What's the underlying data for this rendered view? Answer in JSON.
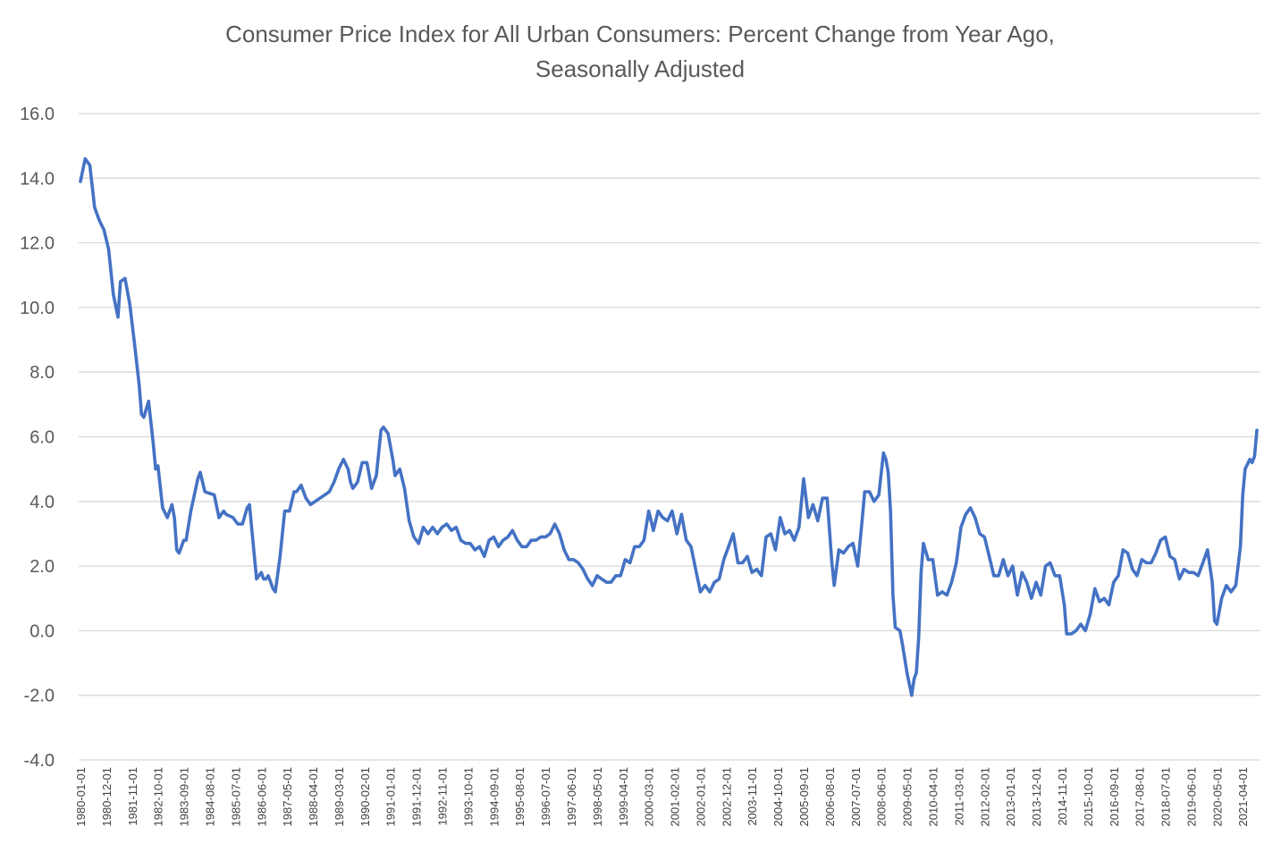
{
  "chart_data": {
    "type": "line",
    "title": "Consumer Price Index for All Urban Consumers:  Percent Change from Year Ago,",
    "subtitle": "Seasonally Adjusted",
    "xlabel": "",
    "ylabel": "",
    "ylim": [
      -4.0,
      16.0
    ],
    "yticks": [
      -4.0,
      -2.0,
      0.0,
      2.0,
      4.0,
      6.0,
      8.0,
      10.0,
      12.0,
      14.0,
      16.0
    ],
    "ytick_labels": [
      "-4.0",
      "-2.0",
      "0.0",
      "2.0",
      "4.0",
      "6.0",
      "8.0",
      "10.0",
      "12.0",
      "14.0",
      "16.0"
    ],
    "xtick_labels": [
      "1980-01-01",
      "1980-12-01",
      "1981-11-01",
      "1982-10-01",
      "1983-09-01",
      "1984-08-01",
      "1985-07-01",
      "1986-06-01",
      "1987-05-01",
      "1988-04-01",
      "1989-03-01",
      "1990-02-01",
      "1991-01-01",
      "1991-12-01",
      "1992-11-01",
      "1993-10-01",
      "1994-09-01",
      "1995-08-01",
      "1996-07-01",
      "1997-06-01",
      "1998-05-01",
      "1999-04-01",
      "2000-03-01",
      "2001-02-01",
      "2002-01-01",
      "2002-12-01",
      "2003-11-01",
      "2004-10-01",
      "2005-09-01",
      "2006-08-01",
      "2007-07-01",
      "2008-06-01",
      "2009-05-01",
      "2010-04-01",
      "2011-03-01",
      "2012-02-01",
      "2013-01-01",
      "2013-12-01",
      "2014-11-01",
      "2015-10-01",
      "2016-09-01",
      "2017-08-01",
      "2018-07-01",
      "2019-06-01",
      "2020-05-01",
      "2021-04-01"
    ],
    "grid": true,
    "legend": "none",
    "line_color": "#4472C4",
    "series": [
      {
        "name": "CPI % change from year ago",
        "start": "1980-01",
        "end": "2021-10",
        "frequency": "monthly",
        "keypoints": [
          [
            "1980-01",
            13.9
          ],
          [
            "1980-03",
            14.6
          ],
          [
            "1980-05",
            14.4
          ],
          [
            "1980-07",
            13.1
          ],
          [
            "1980-09",
            12.7
          ],
          [
            "1980-11",
            12.4
          ],
          [
            "1981-01",
            11.8
          ],
          [
            "1981-03",
            10.4
          ],
          [
            "1981-05",
            9.7
          ],
          [
            "1981-06",
            10.8
          ],
          [
            "1981-08",
            10.9
          ],
          [
            "1981-10",
            10.1
          ],
          [
            "1981-12",
            8.9
          ],
          [
            "1982-02",
            7.6
          ],
          [
            "1982-03",
            6.7
          ],
          [
            "1982-04",
            6.6
          ],
          [
            "1982-06",
            7.1
          ],
          [
            "1982-08",
            5.8
          ],
          [
            "1982-09",
            5.0
          ],
          [
            "1982-10",
            5.1
          ],
          [
            "1982-12",
            3.8
          ],
          [
            "1983-02",
            3.5
          ],
          [
            "1983-04",
            3.9
          ],
          [
            "1983-05",
            3.5
          ],
          [
            "1983-06",
            2.5
          ],
          [
            "1983-07",
            2.4
          ],
          [
            "1983-09",
            2.8
          ],
          [
            "1983-10",
            2.8
          ],
          [
            "1983-12",
            3.7
          ],
          [
            "1984-03",
            4.7
          ],
          [
            "1984-04",
            4.9
          ],
          [
            "1984-06",
            4.3
          ],
          [
            "1984-10",
            4.2
          ],
          [
            "1984-12",
            3.5
          ],
          [
            "1985-02",
            3.7
          ],
          [
            "1985-03",
            3.6
          ],
          [
            "1985-06",
            3.5
          ],
          [
            "1985-08",
            3.3
          ],
          [
            "1985-10",
            3.3
          ],
          [
            "1985-12",
            3.8
          ],
          [
            "1986-01",
            3.9
          ],
          [
            "1986-02",
            3.1
          ],
          [
            "1986-04",
            1.6
          ],
          [
            "1986-06",
            1.8
          ],
          [
            "1986-07",
            1.6
          ],
          [
            "1986-08",
            1.6
          ],
          [
            "1986-09",
            1.7
          ],
          [
            "1986-10",
            1.5
          ],
          [
            "1986-11",
            1.3
          ],
          [
            "1986-12",
            1.2
          ],
          [
            "1987-02",
            2.3
          ],
          [
            "1987-04",
            3.7
          ],
          [
            "1987-06",
            3.7
          ],
          [
            "1987-08",
            4.3
          ],
          [
            "1987-09",
            4.3
          ],
          [
            "1987-11",
            4.5
          ],
          [
            "1988-01",
            4.1
          ],
          [
            "1988-03",
            3.9
          ],
          [
            "1988-05",
            4.0
          ],
          [
            "1988-07",
            4.1
          ],
          [
            "1988-09",
            4.2
          ],
          [
            "1988-11",
            4.3
          ],
          [
            "1989-01",
            4.6
          ],
          [
            "1989-03",
            5.0
          ],
          [
            "1989-05",
            5.3
          ],
          [
            "1989-07",
            5.0
          ],
          [
            "1989-08",
            4.6
          ],
          [
            "1989-09",
            4.4
          ],
          [
            "1989-11",
            4.6
          ],
          [
            "1990-01",
            5.2
          ],
          [
            "1990-03",
            5.2
          ],
          [
            "1990-05",
            4.4
          ],
          [
            "1990-07",
            4.8
          ],
          [
            "1990-09",
            6.2
          ],
          [
            "1990-10",
            6.3
          ],
          [
            "1990-12",
            6.1
          ],
          [
            "1991-02",
            5.3
          ],
          [
            "1991-03",
            4.8
          ],
          [
            "1991-05",
            5.0
          ],
          [
            "1991-07",
            4.4
          ],
          [
            "1991-09",
            3.4
          ],
          [
            "1991-11",
            2.9
          ],
          [
            "1992-01",
            2.7
          ],
          [
            "1992-03",
            3.2
          ],
          [
            "1992-05",
            3.0
          ],
          [
            "1992-07",
            3.2
          ],
          [
            "1992-09",
            3.0
          ],
          [
            "1992-11",
            3.2
          ],
          [
            "1993-01",
            3.3
          ],
          [
            "1993-03",
            3.1
          ],
          [
            "1993-05",
            3.2
          ],
          [
            "1993-07",
            2.8
          ],
          [
            "1993-09",
            2.7
          ],
          [
            "1993-11",
            2.7
          ],
          [
            "1994-01",
            2.5
          ],
          [
            "1994-03",
            2.6
          ],
          [
            "1994-05",
            2.3
          ],
          [
            "1994-07",
            2.8
          ],
          [
            "1994-09",
            2.9
          ],
          [
            "1994-11",
            2.6
          ],
          [
            "1995-01",
            2.8
          ],
          [
            "1995-03",
            2.9
          ],
          [
            "1995-05",
            3.1
          ],
          [
            "1995-07",
            2.8
          ],
          [
            "1995-09",
            2.6
          ],
          [
            "1995-11",
            2.6
          ],
          [
            "1996-01",
            2.8
          ],
          [
            "1996-03",
            2.8
          ],
          [
            "1996-05",
            2.9
          ],
          [
            "1996-07",
            2.9
          ],
          [
            "1996-09",
            3.0
          ],
          [
            "1996-11",
            3.3
          ],
          [
            "1997-01",
            3.0
          ],
          [
            "1997-03",
            2.5
          ],
          [
            "1997-05",
            2.2
          ],
          [
            "1997-07",
            2.2
          ],
          [
            "1997-09",
            2.1
          ],
          [
            "1997-11",
            1.9
          ],
          [
            "1998-01",
            1.6
          ],
          [
            "1998-03",
            1.4
          ],
          [
            "1998-05",
            1.7
          ],
          [
            "1998-07",
            1.6
          ],
          [
            "1998-09",
            1.5
          ],
          [
            "1998-11",
            1.5
          ],
          [
            "1999-01",
            1.7
          ],
          [
            "1999-03",
            1.7
          ],
          [
            "1999-05",
            2.2
          ],
          [
            "1999-07",
            2.1
          ],
          [
            "1999-09",
            2.6
          ],
          [
            "1999-11",
            2.6
          ],
          [
            "2000-01",
            2.8
          ],
          [
            "2000-03",
            3.7
          ],
          [
            "2000-05",
            3.1
          ],
          [
            "2000-07",
            3.7
          ],
          [
            "2000-09",
            3.5
          ],
          [
            "2000-11",
            3.4
          ],
          [
            "2001-01",
            3.7
          ],
          [
            "2001-03",
            3.0
          ],
          [
            "2001-05",
            3.6
          ],
          [
            "2001-07",
            2.8
          ],
          [
            "2001-09",
            2.6
          ],
          [
            "2001-11",
            1.9
          ],
          [
            "2002-01",
            1.2
          ],
          [
            "2002-03",
            1.4
          ],
          [
            "2002-05",
            1.2
          ],
          [
            "2002-07",
            1.5
          ],
          [
            "2002-09",
            1.6
          ],
          [
            "2002-11",
            2.2
          ],
          [
            "2003-01",
            2.6
          ],
          [
            "2003-03",
            3.0
          ],
          [
            "2003-05",
            2.1
          ],
          [
            "2003-07",
            2.1
          ],
          [
            "2003-09",
            2.3
          ],
          [
            "2003-11",
            1.8
          ],
          [
            "2004-01",
            1.9
          ],
          [
            "2004-03",
            1.7
          ],
          [
            "2004-05",
            2.9
          ],
          [
            "2004-07",
            3.0
          ],
          [
            "2004-09",
            2.5
          ],
          [
            "2004-11",
            3.5
          ],
          [
            "2005-01",
            3.0
          ],
          [
            "2005-03",
            3.1
          ],
          [
            "2005-05",
            2.8
          ],
          [
            "2005-07",
            3.2
          ],
          [
            "2005-09",
            4.7
          ],
          [
            "2005-11",
            3.5
          ],
          [
            "2006-01",
            3.9
          ],
          [
            "2006-03",
            3.4
          ],
          [
            "2006-05",
            4.1
          ],
          [
            "2006-07",
            4.1
          ],
          [
            "2006-09",
            2.1
          ],
          [
            "2006-10",
            1.4
          ],
          [
            "2006-12",
            2.5
          ],
          [
            "2007-02",
            2.4
          ],
          [
            "2007-04",
            2.6
          ],
          [
            "2007-06",
            2.7
          ],
          [
            "2007-08",
            2.0
          ],
          [
            "2007-10",
            3.5
          ],
          [
            "2007-11",
            4.3
          ],
          [
            "2008-01",
            4.3
          ],
          [
            "2008-03",
            4.0
          ],
          [
            "2008-05",
            4.2
          ],
          [
            "2008-07",
            5.5
          ],
          [
            "2008-08",
            5.3
          ],
          [
            "2008-09",
            4.9
          ],
          [
            "2008-10",
            3.7
          ],
          [
            "2008-11",
            1.1
          ],
          [
            "2008-12",
            0.1
          ],
          [
            "2009-02",
            0.0
          ],
          [
            "2009-03",
            -0.4
          ],
          [
            "2009-05",
            -1.3
          ],
          [
            "2009-07",
            -2.0
          ],
          [
            "2009-08",
            -1.5
          ],
          [
            "2009-09",
            -1.3
          ],
          [
            "2009-10",
            -0.2
          ],
          [
            "2009-11",
            1.8
          ],
          [
            "2009-12",
            2.7
          ],
          [
            "2010-02",
            2.2
          ],
          [
            "2010-04",
            2.2
          ],
          [
            "2010-06",
            1.1
          ],
          [
            "2010-08",
            1.2
          ],
          [
            "2010-10",
            1.1
          ],
          [
            "2010-12",
            1.5
          ],
          [
            "2011-02",
            2.1
          ],
          [
            "2011-04",
            3.2
          ],
          [
            "2011-06",
            3.6
          ],
          [
            "2011-08",
            3.8
          ],
          [
            "2011-10",
            3.5
          ],
          [
            "2011-12",
            3.0
          ],
          [
            "2012-02",
            2.9
          ],
          [
            "2012-04",
            2.3
          ],
          [
            "2012-06",
            1.7
          ],
          [
            "2012-08",
            1.7
          ],
          [
            "2012-10",
            2.2
          ],
          [
            "2012-12",
            1.7
          ],
          [
            "2013-02",
            2.0
          ],
          [
            "2013-04",
            1.1
          ],
          [
            "2013-06",
            1.8
          ],
          [
            "2013-08",
            1.5
          ],
          [
            "2013-10",
            1.0
          ],
          [
            "2013-12",
            1.5
          ],
          [
            "2014-02",
            1.1
          ],
          [
            "2014-04",
            2.0
          ],
          [
            "2014-06",
            2.1
          ],
          [
            "2014-08",
            1.7
          ],
          [
            "2014-10",
            1.7
          ],
          [
            "2014-12",
            0.8
          ],
          [
            "2015-01",
            -0.1
          ],
          [
            "2015-03",
            -0.1
          ],
          [
            "2015-05",
            0.0
          ],
          [
            "2015-07",
            0.2
          ],
          [
            "2015-09",
            0.0
          ],
          [
            "2015-11",
            0.5
          ],
          [
            "2016-01",
            1.3
          ],
          [
            "2016-03",
            0.9
          ],
          [
            "2016-05",
            1.0
          ],
          [
            "2016-07",
            0.8
          ],
          [
            "2016-09",
            1.5
          ],
          [
            "2016-11",
            1.7
          ],
          [
            "2017-01",
            2.5
          ],
          [
            "2017-03",
            2.4
          ],
          [
            "2017-05",
            1.9
          ],
          [
            "2017-07",
            1.7
          ],
          [
            "2017-09",
            2.2
          ],
          [
            "2017-11",
            2.1
          ],
          [
            "2018-01",
            2.1
          ],
          [
            "2018-03",
            2.4
          ],
          [
            "2018-05",
            2.8
          ],
          [
            "2018-07",
            2.9
          ],
          [
            "2018-09",
            2.3
          ],
          [
            "2018-11",
            2.2
          ],
          [
            "2019-01",
            1.6
          ],
          [
            "2019-03",
            1.9
          ],
          [
            "2019-05",
            1.8
          ],
          [
            "2019-07",
            1.8
          ],
          [
            "2019-09",
            1.7
          ],
          [
            "2019-11",
            2.1
          ],
          [
            "2020-01",
            2.5
          ],
          [
            "2020-03",
            1.5
          ],
          [
            "2020-04",
            0.3
          ],
          [
            "2020-05",
            0.2
          ],
          [
            "2020-07",
            1.0
          ],
          [
            "2020-09",
            1.4
          ],
          [
            "2020-11",
            1.2
          ],
          [
            "2021-01",
            1.4
          ],
          [
            "2021-03",
            2.6
          ],
          [
            "2021-04",
            4.2
          ],
          [
            "2021-05",
            5.0
          ],
          [
            "2021-07",
            5.3
          ],
          [
            "2021-08",
            5.2
          ],
          [
            "2021-09",
            5.4
          ],
          [
            "2021-10",
            6.2
          ]
        ]
      }
    ]
  }
}
